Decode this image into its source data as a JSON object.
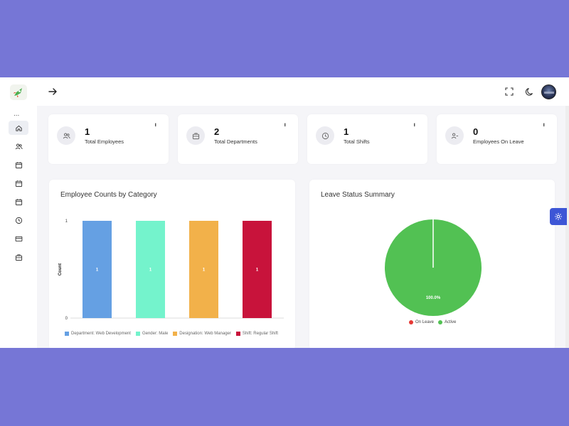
{
  "colors": {
    "background": "#7676d6",
    "accent": "#3d56d6",
    "bar_colors": [
      "#65a0e3",
      "#74f3cc",
      "#f2b14a",
      "#c8133b"
    ],
    "pie_active": "#52c153",
    "pie_on_leave": "#e53935"
  },
  "icons": {
    "sidebar": [
      "home-icon",
      "users-icon",
      "calendar-icon",
      "calendar-icon",
      "calendar-icon",
      "clock-icon",
      "credit-card-icon",
      "briefcase-icon"
    ],
    "topbar": [
      "arrow-right-icon",
      "fullscreen-icon",
      "moon-icon"
    ]
  },
  "sidebar": {
    "more": "..."
  },
  "stats": [
    {
      "value": "1",
      "label": "Total Employees",
      "icon": "users-icon"
    },
    {
      "value": "2",
      "label": "Total Departments",
      "icon": "briefcase-icon"
    },
    {
      "value": "1",
      "label": "Total Shifts",
      "icon": "clock-icon"
    },
    {
      "value": "0",
      "label": "Employees On Leave",
      "icon": "user-minus-icon"
    }
  ],
  "stat_menu": "...",
  "employee_chart": {
    "title": "Employee Counts by Category"
  },
  "leave_chart": {
    "title": "Leave Status Summary"
  },
  "chart_data": [
    {
      "type": "bar",
      "title": "Employee Counts by Category",
      "xlabel": "",
      "ylabel": "Count",
      "ylim": [
        0,
        1
      ],
      "yticks": [
        "0",
        "1"
      ],
      "grid": false,
      "legend_position": "bottom",
      "categories": [
        "Department: Web Development",
        "Gender: Male",
        "Designation: Web Manager",
        "Shift: Regular Shift"
      ],
      "values": [
        1,
        1,
        1,
        1
      ],
      "data_labels": [
        "1",
        "1",
        "1",
        "1"
      ]
    },
    {
      "type": "pie",
      "title": "Leave Status Summary",
      "legend_position": "bottom",
      "labels": [
        "On Leave",
        "Active"
      ],
      "values": [
        0,
        100
      ],
      "data_labels": [
        "100.0%"
      ]
    }
  ]
}
